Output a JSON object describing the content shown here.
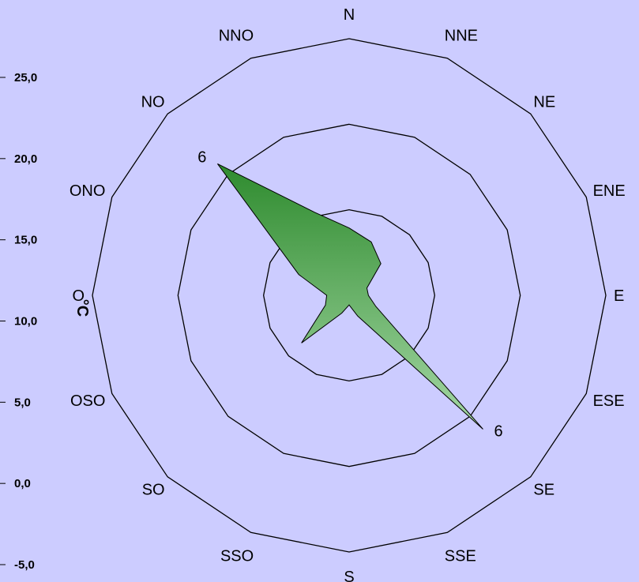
{
  "chart_data": {
    "type": "radar",
    "ylabel": "°C",
    "y_ticks": [
      "25,0",
      "20,0",
      "15,0",
      "10,0",
      "5,0",
      "0,0",
      "-5,0"
    ],
    "y_tick_values": [
      25,
      20,
      15,
      10,
      5,
      0,
      -5
    ],
    "ylim": [
      -5,
      25
    ],
    "directions": [
      "N",
      "NNE",
      "NE",
      "ENE",
      "E",
      "ESE",
      "SE",
      "SSE",
      "S",
      "SSO",
      "SO",
      "OSO",
      "O",
      "ONO",
      "NO",
      "NNO"
    ],
    "rings": 3,
    "grid": true,
    "series": [
      {
        "values": [
          2.1,
          1.8,
          1.4,
          0.6,
          0.6,
          0.9,
          5.9,
          0.7,
          0.3,
          0.6,
          2.1,
          0.8,
          0.7,
          1.7,
          5.8,
          2.8
        ],
        "color_top": "#2e8b2e",
        "color_bottom": "#a5d8a5"
      }
    ],
    "value_max": 8,
    "data_labels": [
      {
        "direction": "NO",
        "text": "6"
      },
      {
        "direction": "SE",
        "text": "6"
      }
    ]
  },
  "colors": {
    "background": "#ccccff",
    "line": "#000000"
  }
}
